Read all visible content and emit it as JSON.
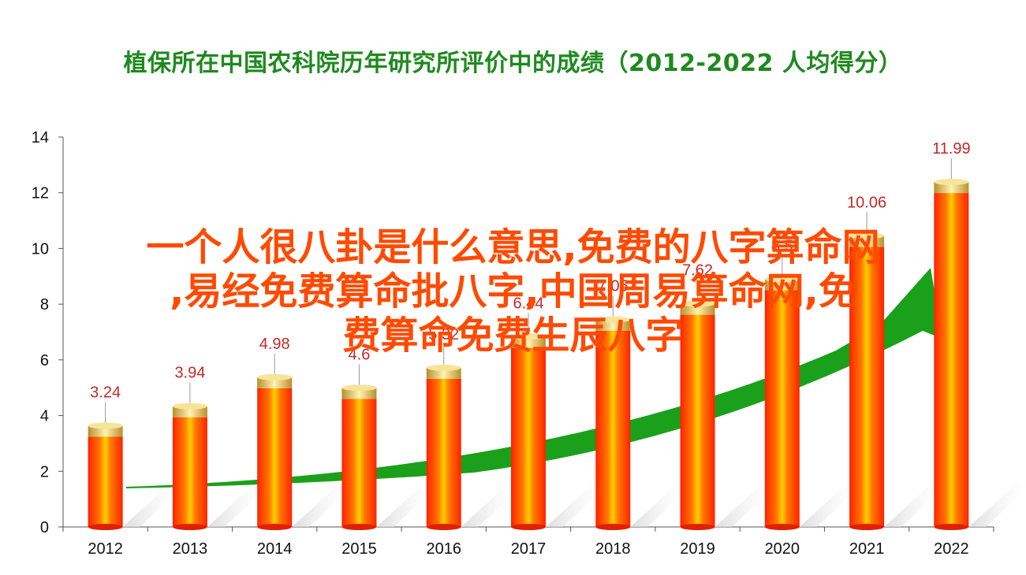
{
  "title": "植保所在中国农科院历年研究所评价中的成绩（2012-2022  人均得分）",
  "overlay_lines": [
    "一个人很八卦是什么意思,免费的八字算命网",
    ",易经免费算命批八字,中国周易算命网,免",
    "费算命免费生辰八字"
  ],
  "colors": {
    "title": "#1e8a1e",
    "bar_main": "#ff3300",
    "bar_highlight": "#ffd400",
    "cap": "#e8c050",
    "label": "#c62828",
    "arrow": "#1aa01a",
    "overlay": "#ff4a00"
  },
  "chart_data": {
    "type": "bar",
    "categories": [
      "2012",
      "2013",
      "2014",
      "2015",
      "2016",
      "2017",
      "2018",
      "2019",
      "2020",
      "2021",
      "2022"
    ],
    "values": [
      3.24,
      3.94,
      4.98,
      4.6,
      5.32,
      6.44,
      7.05,
      7.62,
      8.5,
      10.06,
      11.99
    ],
    "data_labels": [
      "3.24",
      "3.94",
      "4.98",
      "4.6",
      "5.32",
      "6.44",
      "7.05",
      "7.62",
      "8.5",
      "10.06",
      "11.99"
    ],
    "ylim": [
      0,
      14
    ],
    "yticks": [
      "0",
      "2",
      "4",
      "6",
      "8",
      "10",
      "12",
      "14"
    ],
    "grid": false,
    "legend": "none",
    "annotation": "upward trend arrow"
  }
}
